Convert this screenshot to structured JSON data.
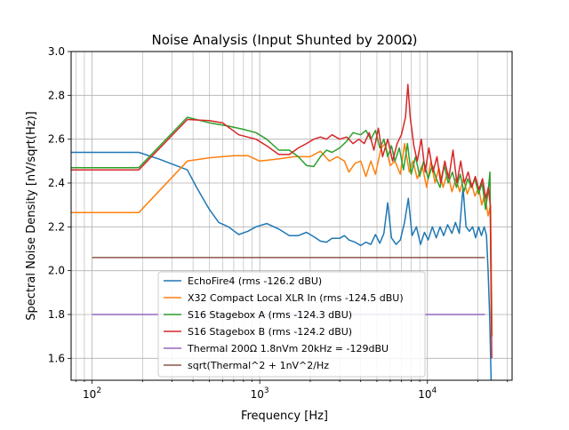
{
  "chart_data": {
    "type": "line",
    "title": "Noise Analysis (Input Shunted by 200Ω)",
    "xlabel": "Frequency [Hz]",
    "ylabel": "Spectral Noise Density [nV/sqrt(Hz)]",
    "xscale": "log",
    "xlim": [
      75,
      32000
    ],
    "ylim": [
      1.5,
      3.0
    ],
    "grid": true,
    "legend_position": "lower-center",
    "yticks": [
      1.6,
      1.8,
      2.0,
      2.2,
      2.4,
      2.6,
      2.8,
      3.0
    ],
    "ytick_labels": [
      "1.6",
      "1.8",
      "2.0",
      "2.2",
      "2.4",
      "2.6",
      "2.8",
      "3.0"
    ],
    "xticks": [
      100,
      1000,
      10000
    ],
    "xtick_bases": [
      "10",
      "10",
      "10"
    ],
    "xtick_exponents": [
      "2",
      "3",
      "4"
    ],
    "series": [
      {
        "name": "EchoFire4 (rms -126.2 dBU)",
        "color": "#1f77b4",
        "points": [
          [
            75,
            2.54
          ],
          [
            190,
            2.54
          ],
          [
            250,
            2.51
          ],
          [
            370,
            2.46
          ],
          [
            420,
            2.38
          ],
          [
            500,
            2.28
          ],
          [
            570,
            2.22
          ],
          [
            650,
            2.2
          ],
          [
            750,
            2.165
          ],
          [
            850,
            2.18
          ],
          [
            950,
            2.2
          ],
          [
            1100,
            2.215
          ],
          [
            1300,
            2.19
          ],
          [
            1500,
            2.16
          ],
          [
            1700,
            2.16
          ],
          [
            1900,
            2.175
          ],
          [
            2100,
            2.155
          ],
          [
            2300,
            2.135
          ],
          [
            2500,
            2.13
          ],
          [
            2700,
            2.148
          ],
          [
            3000,
            2.148
          ],
          [
            3200,
            2.16
          ],
          [
            3400,
            2.14
          ],
          [
            3700,
            2.13
          ],
          [
            4000,
            2.115
          ],
          [
            4300,
            2.13
          ],
          [
            4600,
            2.12
          ],
          [
            4900,
            2.165
          ],
          [
            5200,
            2.125
          ],
          [
            5500,
            2.17
          ],
          [
            5800,
            2.31
          ],
          [
            6100,
            2.15
          ],
          [
            6500,
            2.12
          ],
          [
            6900,
            2.14
          ],
          [
            7300,
            2.22
          ],
          [
            7700,
            2.33
          ],
          [
            8100,
            2.16
          ],
          [
            8600,
            2.2
          ],
          [
            9100,
            2.12
          ],
          [
            9600,
            2.175
          ],
          [
            10100,
            2.14
          ],
          [
            10700,
            2.2
          ],
          [
            11300,
            2.15
          ],
          [
            11900,
            2.2
          ],
          [
            12500,
            2.16
          ],
          [
            13200,
            2.21
          ],
          [
            14000,
            2.17
          ],
          [
            14700,
            2.22
          ],
          [
            15500,
            2.17
          ],
          [
            16300,
            2.38
          ],
          [
            17000,
            2.2
          ],
          [
            17800,
            2.18
          ],
          [
            18600,
            2.2
          ],
          [
            19400,
            2.15
          ],
          [
            20200,
            2.2
          ],
          [
            21000,
            2.16
          ],
          [
            21800,
            2.2
          ],
          [
            22500,
            2.16
          ],
          [
            23000,
            2.0
          ],
          [
            23500,
            1.8
          ],
          [
            24000,
            1.5
          ]
        ]
      },
      {
        "name": "X32 Compact Local XLR In (rms -124.5 dBU)",
        "color": "#ff7f0e",
        "points": [
          [
            75,
            2.265
          ],
          [
            190,
            2.265
          ],
          [
            370,
            2.5
          ],
          [
            500,
            2.515
          ],
          [
            700,
            2.525
          ],
          [
            850,
            2.525
          ],
          [
            1000,
            2.5
          ],
          [
            1300,
            2.51
          ],
          [
            1600,
            2.52
          ],
          [
            2000,
            2.52
          ],
          [
            2300,
            2.545
          ],
          [
            2600,
            2.5
          ],
          [
            2900,
            2.52
          ],
          [
            3200,
            2.5
          ],
          [
            3400,
            2.45
          ],
          [
            3700,
            2.49
          ],
          [
            4000,
            2.5
          ],
          [
            4300,
            2.43
          ],
          [
            4600,
            2.5
          ],
          [
            4900,
            2.44
          ],
          [
            5300,
            2.56
          ],
          [
            5600,
            2.58
          ],
          [
            6000,
            2.48
          ],
          [
            6400,
            2.5
          ],
          [
            6900,
            2.44
          ],
          [
            7300,
            2.58
          ],
          [
            7800,
            2.45
          ],
          [
            8200,
            2.5
          ],
          [
            8700,
            2.42
          ],
          [
            9300,
            2.48
          ],
          [
            9900,
            2.38
          ],
          [
            10500,
            2.5
          ],
          [
            11100,
            2.4
          ],
          [
            11700,
            2.47
          ],
          [
            12400,
            2.38
          ],
          [
            13200,
            2.45
          ],
          [
            14000,
            2.36
          ],
          [
            14800,
            2.42
          ],
          [
            15600,
            2.36
          ],
          [
            16400,
            2.42
          ],
          [
            17300,
            2.35
          ],
          [
            18300,
            2.4
          ],
          [
            19200,
            2.34
          ],
          [
            20200,
            2.38
          ],
          [
            21100,
            2.3
          ],
          [
            22000,
            2.35
          ],
          [
            23000,
            2.25
          ],
          [
            23800,
            2.3
          ],
          [
            24300,
            1.7
          ]
        ]
      },
      {
        "name": "S16 Stagebox A (rms -124.3 dBU)",
        "color": "#2ca02c",
        "points": [
          [
            75,
            2.47
          ],
          [
            190,
            2.47
          ],
          [
            370,
            2.7
          ],
          [
            500,
            2.675
          ],
          [
            650,
            2.66
          ],
          [
            800,
            2.645
          ],
          [
            950,
            2.63
          ],
          [
            1100,
            2.6
          ],
          [
            1300,
            2.55
          ],
          [
            1500,
            2.55
          ],
          [
            1700,
            2.52
          ],
          [
            1900,
            2.48
          ],
          [
            2100,
            2.475
          ],
          [
            2300,
            2.52
          ],
          [
            2500,
            2.55
          ],
          [
            2700,
            2.54
          ],
          [
            3000,
            2.56
          ],
          [
            3300,
            2.59
          ],
          [
            3600,
            2.63
          ],
          [
            4000,
            2.62
          ],
          [
            4300,
            2.64
          ],
          [
            4600,
            2.6
          ],
          [
            4900,
            2.64
          ],
          [
            5200,
            2.56
          ],
          [
            5500,
            2.6
          ],
          [
            5800,
            2.52
          ],
          [
            6100,
            2.57
          ],
          [
            6400,
            2.5
          ],
          [
            6800,
            2.56
          ],
          [
            7200,
            2.46
          ],
          [
            7600,
            2.58
          ],
          [
            8000,
            2.44
          ],
          [
            8500,
            2.52
          ],
          [
            9000,
            2.43
          ],
          [
            9500,
            2.5
          ],
          [
            10100,
            2.42
          ],
          [
            10700,
            2.48
          ],
          [
            11300,
            2.42
          ],
          [
            11900,
            2.38
          ],
          [
            12600,
            2.48
          ],
          [
            13300,
            2.4
          ],
          [
            14100,
            2.45
          ],
          [
            14900,
            2.38
          ],
          [
            15700,
            2.44
          ],
          [
            16500,
            2.36
          ],
          [
            17400,
            2.42
          ],
          [
            18300,
            2.38
          ],
          [
            19200,
            2.42
          ],
          [
            20200,
            2.35
          ],
          [
            21200,
            2.4
          ],
          [
            22200,
            2.28
          ],
          [
            23000,
            2.36
          ],
          [
            23600,
            2.45
          ],
          [
            24100,
            1.75
          ]
        ]
      },
      {
        "name": "S16 Stagebox B (rms -124.2 dBU)",
        "color": "#d62728",
        "points": [
          [
            75,
            2.46
          ],
          [
            190,
            2.46
          ],
          [
            370,
            2.69
          ],
          [
            500,
            2.685
          ],
          [
            600,
            2.675
          ],
          [
            750,
            2.62
          ],
          [
            950,
            2.6
          ],
          [
            1100,
            2.57
          ],
          [
            1300,
            2.53
          ],
          [
            1500,
            2.53
          ],
          [
            1700,
            2.56
          ],
          [
            1900,
            2.58
          ],
          [
            2100,
            2.6
          ],
          [
            2300,
            2.61
          ],
          [
            2500,
            2.6
          ],
          [
            2700,
            2.62
          ],
          [
            3000,
            2.6
          ],
          [
            3300,
            2.61
          ],
          [
            3600,
            2.58
          ],
          [
            3900,
            2.6
          ],
          [
            4200,
            2.58
          ],
          [
            4500,
            2.63
          ],
          [
            4800,
            2.55
          ],
          [
            5100,
            2.65
          ],
          [
            5400,
            2.52
          ],
          [
            5800,
            2.6
          ],
          [
            6200,
            2.5
          ],
          [
            6600,
            2.58
          ],
          [
            7000,
            2.62
          ],
          [
            7400,
            2.7
          ],
          [
            7650,
            2.85
          ],
          [
            7900,
            2.7
          ],
          [
            8300,
            2.57
          ],
          [
            8700,
            2.5
          ],
          [
            9200,
            2.6
          ],
          [
            9700,
            2.45
          ],
          [
            10200,
            2.56
          ],
          [
            10800,
            2.45
          ],
          [
            11400,
            2.52
          ],
          [
            12000,
            2.4
          ],
          [
            12700,
            2.5
          ],
          [
            13400,
            2.42
          ],
          [
            14200,
            2.55
          ],
          [
            15000,
            2.4
          ],
          [
            15800,
            2.5
          ],
          [
            16600,
            2.4
          ],
          [
            17500,
            2.45
          ],
          [
            18400,
            2.38
          ],
          [
            19300,
            2.43
          ],
          [
            20300,
            2.37
          ],
          [
            21300,
            2.42
          ],
          [
            22300,
            2.33
          ],
          [
            23100,
            2.38
          ],
          [
            23700,
            2.3
          ],
          [
            24200,
            1.6
          ]
        ]
      },
      {
        "name": "Thermal 200Ω 1.8nVm 20kHz = -129dBU",
        "color": "#9467bd",
        "points": [
          [
            100,
            1.8
          ],
          [
            22000,
            1.8
          ]
        ]
      },
      {
        "name": "sqrt(Thermal^2 + 1nV^2/Hz",
        "color": "#8c564b",
        "points": [
          [
            100,
            2.06
          ],
          [
            22000,
            2.06
          ]
        ]
      }
    ]
  }
}
